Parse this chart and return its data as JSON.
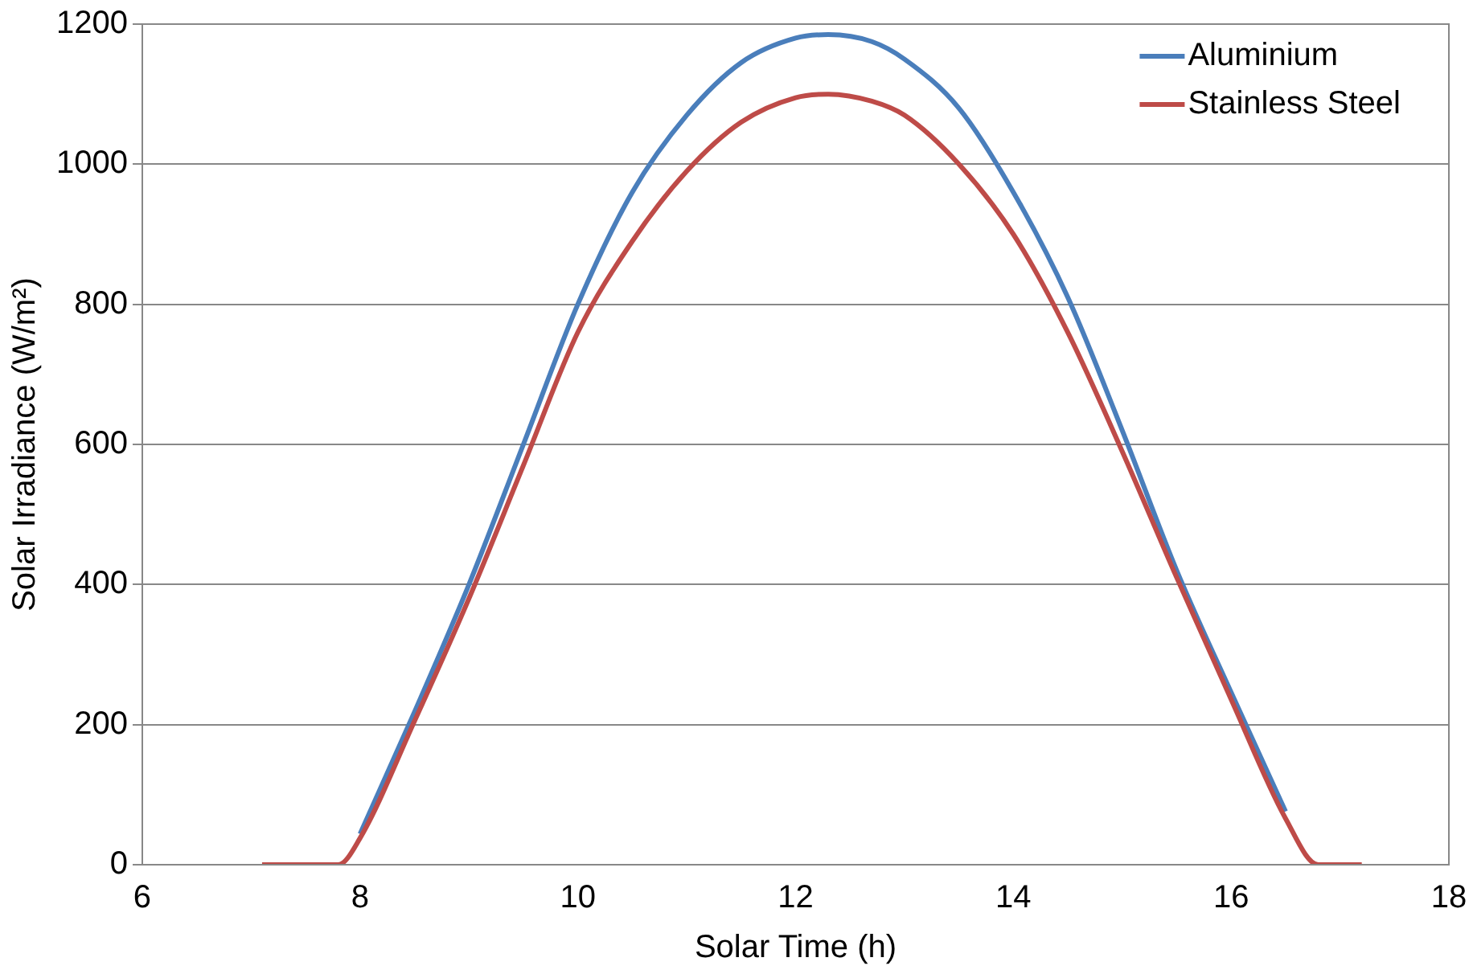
{
  "chart_data": {
    "type": "line",
    "xlabel": "Solar Time (h)",
    "ylabel": "Solar Irradiance (W/m²)",
    "xlim": [
      6,
      18
    ],
    "xticks": [
      6,
      8,
      10,
      12,
      14,
      16,
      18
    ],
    "ylim": [
      0,
      1200
    ],
    "yticks": [
      0,
      200,
      400,
      600,
      800,
      1000,
      1200
    ],
    "grid": "y",
    "legend": "top right",
    "marker": "none",
    "line_style": "solid",
    "series": [
      {
        "name": "Aluminium",
        "color": "#4a7ebb",
        "x": [
          8,
          8.5,
          9,
          9.5,
          10,
          10.5,
          11,
          11.5,
          12,
          12.3,
          12.7,
          13,
          13.5,
          14,
          14.5,
          15,
          15.5,
          16,
          16.5
        ],
        "values": [
          44,
          218,
          400,
          600,
          800,
          960,
          1070,
          1145,
          1180,
          1185,
          1175,
          1150,
          1080,
          960,
          810,
          620,
          420,
          246,
          76
        ]
      },
      {
        "name": "Stainless Steel",
        "color": "#be4b48",
        "x": [
          7.1,
          7.5,
          7.7,
          7.8,
          8,
          8.5,
          9,
          9.5,
          10,
          10.5,
          11,
          11.5,
          12,
          12.3,
          12.7,
          13,
          13.5,
          14,
          14.5,
          15,
          15.5,
          16,
          16.5,
          16.8,
          17,
          17.2
        ],
        "values": [
          0,
          0,
          0,
          0,
          38,
          205,
          380,
          570,
          760,
          890,
          990,
          1060,
          1095,
          1100,
          1090,
          1070,
          1000,
          900,
          760,
          590,
          410,
          236,
          66,
          0,
          0,
          0
        ]
      }
    ]
  }
}
